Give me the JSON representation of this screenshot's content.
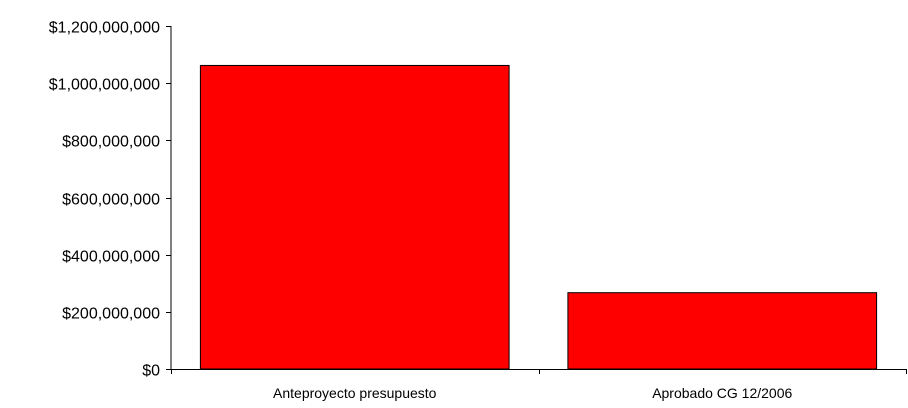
{
  "chart_data": {
    "type": "bar",
    "title": "",
    "xlabel": "",
    "ylabel": "",
    "categories": [
      "Anteproyecto presupuesto",
      "Aprobado CG 12/2006"
    ],
    "values": [
      1062000000,
      267000000
    ],
    "ylim": [
      0,
      1200000000
    ],
    "y_ticks": [
      0,
      200000000,
      400000000,
      600000000,
      800000000,
      1000000000,
      1200000000
    ],
    "y_tick_labels": [
      "$0",
      "$200,000,000",
      "$400,000,000",
      "$600,000,000",
      "$800,000,000",
      "$1,000,000,000",
      "$1,200,000,000"
    ],
    "bar_color": "#ff0000",
    "bar_edge_color": "#000000",
    "grid": false,
    "legend": "none"
  }
}
